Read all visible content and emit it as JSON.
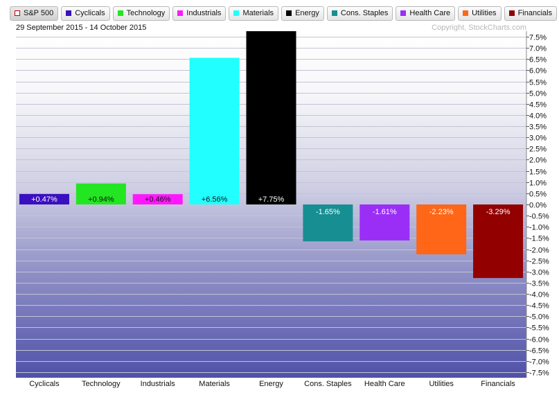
{
  "date_range": "29 September 2015 - 14 October 2015",
  "copyright": "Copyright, StockCharts.com",
  "legend": [
    {
      "label": "S&P 500",
      "color": "#c00000",
      "hollow": true
    },
    {
      "label": "Cyclicals",
      "color": "#3a0fbf"
    },
    {
      "label": "Technology",
      "color": "#22e622"
    },
    {
      "label": "Industrials",
      "color": "#ff18ff"
    },
    {
      "label": "Materials",
      "color": "#22ffff"
    },
    {
      "label": "Energy",
      "color": "#000000"
    },
    {
      "label": "Cons. Staples",
      "color": "#178e92"
    },
    {
      "label": "Health Care",
      "color": "#9a2ef6"
    },
    {
      "label": "Utilities",
      "color": "#ff6618"
    },
    {
      "label": "Financials",
      "color": "#930000"
    }
  ],
  "chart_data": {
    "type": "bar",
    "categories": [
      "Cyclicals",
      "Technology",
      "Industrials",
      "Materials",
      "Energy",
      "Cons. Staples",
      "Health Care",
      "Utilities",
      "Financials"
    ],
    "values": [
      0.47,
      0.94,
      0.46,
      6.56,
      7.75,
      -1.65,
      -1.61,
      -2.23,
      -3.29
    ],
    "data_labels": [
      "+0.47%",
      "+0.94%",
      "+0.46%",
      "+6.56%",
      "+7.75%",
      "-1.65%",
      "-1.61%",
      "-2.23%",
      "-3.29%"
    ],
    "colors": [
      "#3a0fbf",
      "#22e622",
      "#ff18ff",
      "#22ffff",
      "#000000",
      "#178e92",
      "#9a2ef6",
      "#ff6618",
      "#930000"
    ],
    "label_colors": [
      "#ffffff",
      "#111111",
      "#111111",
      "#111111",
      "#ffffff",
      "#ffffff",
      "#ffffff",
      "#ffffff",
      "#ffffff"
    ],
    "y_ticks": [
      "7.5%",
      "7.0%",
      "6.5%",
      "6.0%",
      "5.5%",
      "5.0%",
      "4.5%",
      "4.0%",
      "3.5%",
      "3.0%",
      "2.5%",
      "2.0%",
      "1.5%",
      "1.0%",
      "0.5%",
      "0.0%",
      "-0.5%",
      "-1.0%",
      "-1.5%",
      "-2.0%",
      "-2.5%",
      "-3.0%",
      "-3.5%",
      "-4.0%",
      "-4.5%",
      "-5.0%",
      "-5.5%",
      "-6.0%",
      "-6.5%",
      "-7.0%",
      "-7.5%"
    ],
    "ylim": [
      -7.75,
      7.75
    ],
    "y_axis_position": "right",
    "grid": true,
    "legend_position": "top"
  }
}
